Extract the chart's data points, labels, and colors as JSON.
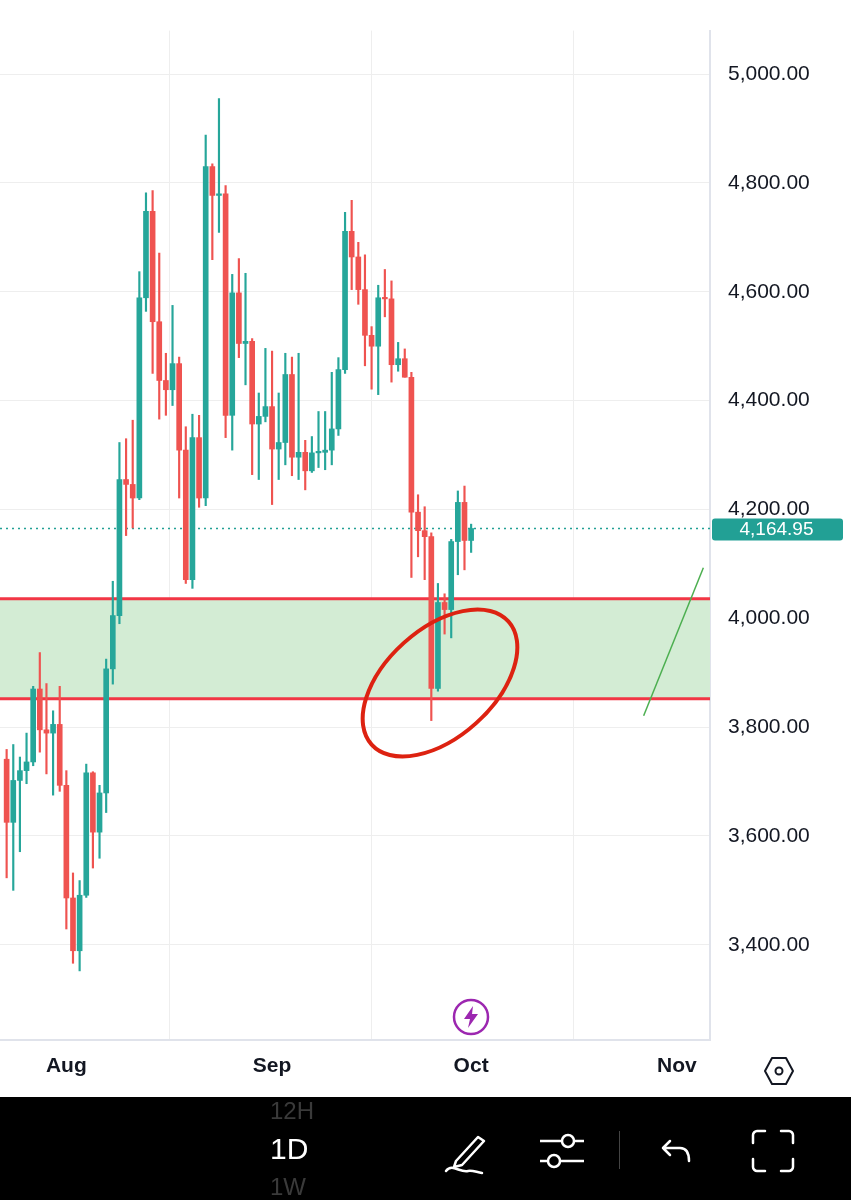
{
  "chart_data": {
    "type": "candlestick",
    "x": [
      "--07-23",
      "--07-24",
      "--07-25",
      "--07-26",
      "--07-27",
      "--07-28",
      "--07-29",
      "--07-30",
      "--07-31",
      "--08-01",
      "--08-02",
      "--08-03",
      "--08-04",
      "--08-05",
      "--08-06",
      "--08-07",
      "--08-08",
      "--08-09",
      "--08-10",
      "--08-11",
      "--08-12",
      "--08-13",
      "--08-14",
      "--08-15",
      "--08-16",
      "--08-17",
      "--08-18",
      "--08-19",
      "--08-20",
      "--08-21",
      "--08-22",
      "--08-23",
      "--08-24",
      "--08-25",
      "--08-26",
      "--08-27",
      "--08-28",
      "--08-29",
      "--08-30",
      "--08-31",
      "--09-01",
      "--09-02",
      "--09-03",
      "--09-04",
      "--09-05",
      "--09-06",
      "--09-07",
      "--09-08",
      "--09-09",
      "--09-10",
      "--09-11",
      "--09-12",
      "--09-13",
      "--09-14",
      "--09-15",
      "--09-16",
      "--09-17",
      "--09-18",
      "--09-19",
      "--09-20",
      "--09-21",
      "--09-22",
      "--09-23",
      "--09-24",
      "--09-25",
      "--09-26",
      "--09-27",
      "--09-28",
      "--09-29",
      "--09-30",
      "--10-01"
    ],
    "ohlc": [
      [
        3741,
        3759,
        3523,
        3625
      ],
      [
        3625,
        3768,
        3500,
        3702
      ],
      [
        3702,
        3745,
        3571,
        3720
      ],
      [
        3720,
        3789,
        3696,
        3736
      ],
      [
        3736,
        3875,
        3729,
        3870
      ],
      [
        3870,
        3937,
        3754,
        3795
      ],
      [
        3795,
        3880,
        3714,
        3789
      ],
      [
        3789,
        3830,
        3675,
        3805
      ],
      [
        3805,
        3875,
        3682,
        3693
      ],
      [
        3693,
        3720,
        3429,
        3486
      ],
      [
        3486,
        3532,
        3366,
        3389
      ],
      [
        3389,
        3518,
        3352,
        3491
      ],
      [
        3491,
        3732,
        3487,
        3716
      ],
      [
        3716,
        3718,
        3541,
        3607
      ],
      [
        3607,
        3693,
        3559,
        3679
      ],
      [
        3679,
        3925,
        3643,
        3907
      ],
      [
        3907,
        4068,
        3879,
        4005
      ],
      [
        4005,
        4323,
        3990,
        4255
      ],
      [
        4255,
        4330,
        4152,
        4246
      ],
      [
        4246,
        4364,
        4166,
        4221
      ],
      [
        4221,
        4637,
        4218,
        4589
      ],
      [
        4589,
        4782,
        4564,
        4748
      ],
      [
        4748,
        4786,
        4450,
        4545
      ],
      [
        4545,
        4671,
        4366,
        4437
      ],
      [
        4437,
        4487,
        4373,
        4420
      ],
      [
        4420,
        4575,
        4391,
        4468
      ],
      [
        4468,
        4480,
        4221,
        4309
      ],
      [
        4309,
        4352,
        4064,
        4071
      ],
      [
        4071,
        4375,
        4055,
        4332
      ],
      [
        4332,
        4373,
        4204,
        4221
      ],
      [
        4221,
        4888,
        4207,
        4830
      ],
      [
        4830,
        4835,
        4659,
        4777
      ],
      [
        4777,
        4955,
        4709,
        4780
      ],
      [
        4780,
        4795,
        4332,
        4373
      ],
      [
        4373,
        4632,
        4309,
        4598
      ],
      [
        4598,
        4661,
        4479,
        4505
      ],
      [
        4505,
        4634,
        4429,
        4509
      ],
      [
        4509,
        4514,
        4264,
        4357
      ],
      [
        4357,
        4414,
        4255,
        4371
      ],
      [
        4371,
        4496,
        4361,
        4389
      ],
      [
        4389,
        4491,
        4209,
        4311
      ],
      [
        4311,
        4414,
        4255,
        4323
      ],
      [
        4323,
        4487,
        4282,
        4448
      ],
      [
        4448,
        4480,
        4262,
        4296
      ],
      [
        4296,
        4487,
        4255,
        4305
      ],
      [
        4305,
        4327,
        4236,
        4271
      ],
      [
        4271,
        4334,
        4268,
        4304
      ],
      [
        4304,
        4380,
        4277,
        4305
      ],
      [
        4305,
        4380,
        4273,
        4309
      ],
      [
        4309,
        4452,
        4282,
        4348
      ],
      [
        4348,
        4479,
        4336,
        4457
      ],
      [
        4457,
        4746,
        4450,
        4711
      ],
      [
        4711,
        4768,
        4604,
        4664
      ],
      [
        4664,
        4691,
        4577,
        4604
      ],
      [
        4604,
        4668,
        4464,
        4520
      ],
      [
        4520,
        4536,
        4421,
        4500
      ],
      [
        4500,
        4612,
        4411,
        4589
      ],
      [
        4589,
        4641,
        4554,
        4587
      ],
      [
        4587,
        4620,
        4434,
        4466
      ],
      [
        4466,
        4507,
        4454,
        4477
      ],
      [
        4477,
        4495,
        4443,
        4443
      ],
      [
        4443,
        4452,
        4075,
        4195
      ],
      [
        4195,
        4227,
        4113,
        4161
      ],
      [
        4161,
        4205,
        4071,
        4150
      ],
      [
        4150,
        4157,
        3812,
        3871
      ],
      [
        3871,
        4064,
        3866,
        4029
      ],
      [
        4029,
        4045,
        3971,
        4016
      ],
      [
        4016,
        4145,
        3964,
        4141
      ],
      [
        4141,
        4234,
        4080,
        4213
      ],
      [
        4213,
        4243,
        4089,
        4143
      ],
      [
        4143,
        4173,
        4121,
        4165
      ]
    ],
    "colors": [
      "#ef5350",
      "#26a69a",
      "#26a69a",
      "#26a69a",
      "#26a69a",
      "#ef5350",
      "#ef5350",
      "#26a69a",
      "#ef5350",
      "#ef5350",
      "#ef5350",
      "#26a69a",
      "#26a69a",
      "#ef5350",
      "#26a69a",
      "#26a69a",
      "#26a69a",
      "#26a69a",
      "#ef5350",
      "#ef5350",
      "#26a69a",
      "#26a69a",
      "#ef5350",
      "#ef5350",
      "#ef5350",
      "#26a69a",
      "#ef5350",
      "#ef5350",
      "#26a69a",
      "#ef5350",
      "#26a69a",
      "#ef5350",
      "#26a69a",
      "#ef5350",
      "#26a69a",
      "#ef5350",
      "#26a69a",
      "#ef5350",
      "#26a69a",
      "#26a69a",
      "#ef5350",
      "#26a69a",
      "#26a69a",
      "#ef5350",
      "#26a69a",
      "#ef5350",
      "#26a69a",
      "#26a69a",
      "#26a69a",
      "#26a69a",
      "#26a69a",
      "#26a69a",
      "#ef5350",
      "#ef5350",
      "#ef5350",
      "#ef5350",
      "#26a69a",
      "#ef5350",
      "#ef5350",
      "#26a69a",
      "#ef5350",
      "#ef5350",
      "#ef5350",
      "#ef5350",
      "#ef5350",
      "#26a69a",
      "#ef5350",
      "#26a69a",
      "#26a69a",
      "#ef5350",
      "#26a69a"
    ],
    "series": [
      {
        "type": "line",
        "x": [
          "--10-27",
          "--11-05"
        ],
        "values": [
          3821,
          4093
        ],
        "color": "#4caf50"
      }
    ],
    "xlim": [
      "--07-22",
      "--11-06"
    ],
    "xticks": [
      {
        "value": "--08-01",
        "label": "Aug"
      },
      {
        "value": "--09-01",
        "label": "Sep"
      },
      {
        "value": "--10-01",
        "label": "Oct"
      },
      {
        "value": "--11-01",
        "label": "Nov"
      }
    ],
    "ylim": [
      3225,
      5080
    ],
    "yticks": [
      {
        "value": 3400,
        "label": "3,400.00"
      },
      {
        "value": 3600,
        "label": "3,600.00"
      },
      {
        "value": 3800,
        "label": "3,800.00"
      },
      {
        "value": 4000,
        "label": "4,000.00"
      },
      {
        "value": 4200,
        "label": "4,200.00"
      },
      {
        "value": 4400,
        "label": "4,400.00"
      },
      {
        "value": 4600,
        "label": "4,600.00"
      },
      {
        "value": 4800,
        "label": "4,800.00"
      },
      {
        "value": 5000,
        "label": "5,000.00"
      }
    ],
    "grid": true,
    "bands": [
      {
        "axis": "y",
        "from": 3852,
        "to": 4036,
        "color": "#d3ecd4"
      }
    ],
    "ref_lines": [
      {
        "axis": "y",
        "value": 4036,
        "color": "#f23645"
      },
      {
        "axis": "y",
        "value": 3852,
        "color": "#f23645"
      },
      {
        "axis": "y",
        "value": 4164.95,
        "label": "4,164.95",
        "color": "#22a095",
        "line_style": "dotted"
      }
    ],
    "annotations": [
      "12H",
      "1D",
      "1W"
    ]
  }
}
